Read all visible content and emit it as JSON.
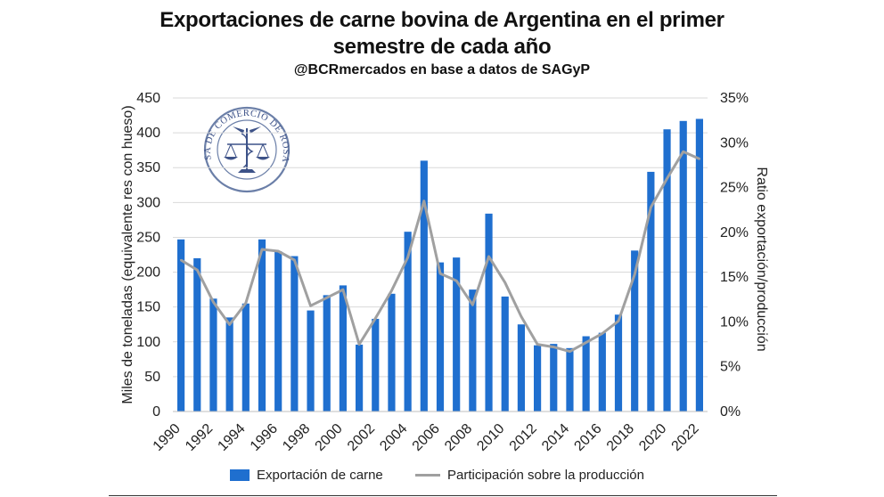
{
  "title_line1": "Exportaciones de carne bovina de Argentina en el primer",
  "title_line2": "semestre de cada año",
  "subtitle": "@BCRmercados en base a datos de SAGyP",
  "logo_text": "BOLSA DE COMERCIO DE ROSARIO",
  "colors": {
    "bars": "#1f6fcf",
    "line": "#a0a0a0",
    "grid": "#d9d9d9",
    "text": "#222222"
  },
  "chart_data": {
    "type": "bar",
    "title": "Exportaciones de carne bovina de Argentina en el primer semestre de cada año",
    "subtitle": "@BCRmercados en base a datos de SAGyP",
    "ylabel": "Miles de toneladas (equivalente res con hueso)",
    "y2label": "Ratio exportación/producción",
    "ylim": [
      0,
      450
    ],
    "y2lim": [
      0,
      0.35
    ],
    "yticks": [
      "0",
      "50",
      "100",
      "150",
      "200",
      "250",
      "300",
      "350",
      "400",
      "450"
    ],
    "y2ticks": [
      "0%",
      "5%",
      "10%",
      "15%",
      "20%",
      "25%",
      "30%",
      "35%"
    ],
    "xtick_labels": [
      "1990",
      "1992",
      "1994",
      "1996",
      "1998",
      "2000",
      "2002",
      "2004",
      "2006",
      "2008",
      "2010",
      "2012",
      "2014",
      "2016",
      "2018",
      "2020",
      "2022"
    ],
    "grid": true,
    "legend_position": "bottom",
    "categories": [
      "1990",
      "1991",
      "1992",
      "1993",
      "1994",
      "1995",
      "1996",
      "1997",
      "1998",
      "1999",
      "2000",
      "2001",
      "2002",
      "2003",
      "2004",
      "2005",
      "2006",
      "2007",
      "2008",
      "2009",
      "2010",
      "2011",
      "2012",
      "2013",
      "2014",
      "2015",
      "2016",
      "2017",
      "2018",
      "2019",
      "2020",
      "2021",
      "2022"
    ],
    "series": [
      {
        "name": "Exportación de carne",
        "type": "bar",
        "axis": "left",
        "values": [
          247,
          220,
          162,
          135,
          155,
          247,
          230,
          223,
          145,
          167,
          181,
          96,
          133,
          169,
          258,
          360,
          214,
          221,
          175,
          284,
          165,
          125,
          95,
          97,
          91,
          108,
          113,
          139,
          231,
          344,
          405,
          417,
          420
        ]
      },
      {
        "name": "Participación sobre la producción",
        "type": "line",
        "axis": "right",
        "values": [
          0.169,
          0.158,
          0.122,
          0.097,
          0.121,
          0.181,
          0.179,
          0.169,
          0.118,
          0.127,
          0.136,
          0.075,
          0.104,
          0.135,
          0.172,
          0.235,
          0.154,
          0.146,
          0.119,
          0.173,
          0.144,
          0.106,
          0.075,
          0.072,
          0.067,
          0.077,
          0.087,
          0.101,
          0.153,
          0.228,
          0.26,
          0.29,
          0.282
        ]
      }
    ]
  }
}
